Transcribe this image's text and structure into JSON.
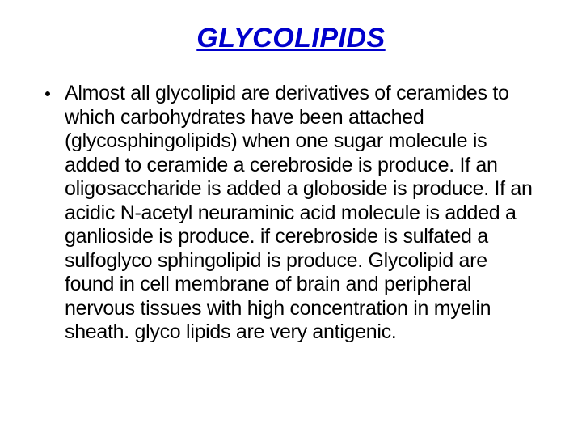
{
  "slide": {
    "title": "GLYCOLIPIDS",
    "title_color": "#0000cc",
    "title_fontsize": 34,
    "body_color": "#000000",
    "body_fontsize": 25,
    "bullet_color": "#000000",
    "background_color": "#ffffff",
    "body_text": "Almost all glycolipid are derivatives of ceramides to which carbohydrates have been attached (glycosphingolipids) when one sugar molecule is added to ceramide a cerebroside is produce. If an oligosaccharide is added a globoside is produce. If an acidic N-acetyl neuraminic acid molecule is added a ganlioside is produce. if cerebroside is sulfated a sulfoglyco sphingolipid is produce. Glycolipid are found in cell membrane of brain and peripheral nervous tissues with high concentration in myelin sheath. glyco lipids are very antigenic."
  }
}
